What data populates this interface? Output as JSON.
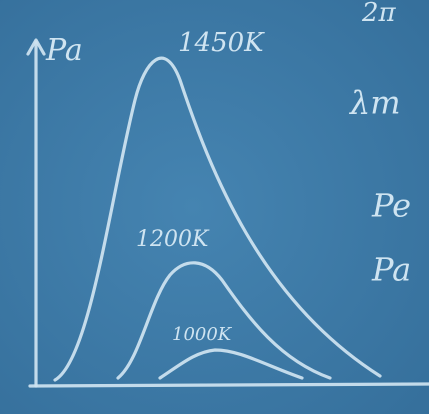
{
  "axis_label": "Pa",
  "curves": [
    {
      "label": "1450K"
    },
    {
      "label": "1200K"
    },
    {
      "label": "1000K"
    }
  ],
  "side_notes": [
    "2π",
    "λm",
    "Pe",
    "Pa"
  ]
}
